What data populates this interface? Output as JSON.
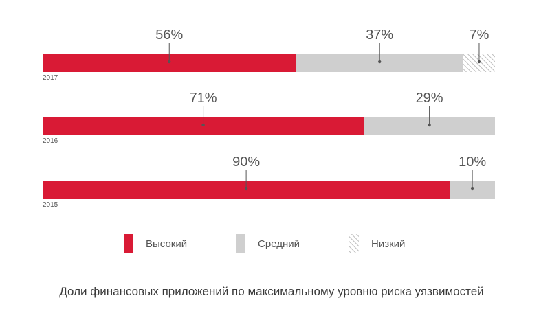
{
  "chart_data": {
    "type": "bar",
    "stacked": true,
    "orientation": "horizontal",
    "categories": [
      "2017",
      "2016",
      "2015"
    ],
    "series": [
      {
        "name": "Высокий",
        "values": [
          56,
          71,
          90
        ],
        "color": "#d91a35",
        "pattern": "solid"
      },
      {
        "name": "Средний",
        "values": [
          37,
          29,
          10
        ],
        "color": "#cfcfcf",
        "pattern": "solid"
      },
      {
        "name": "Низкий",
        "values": [
          7,
          0,
          0
        ],
        "color": "#bdbdbd",
        "pattern": "hatched"
      }
    ],
    "value_suffix": "%",
    "title": "Доли финансовых приложений по максимальному уровню риска уязвимостей",
    "xlim": [
      0,
      100
    ],
    "legend_position": "bottom",
    "grid": false
  }
}
